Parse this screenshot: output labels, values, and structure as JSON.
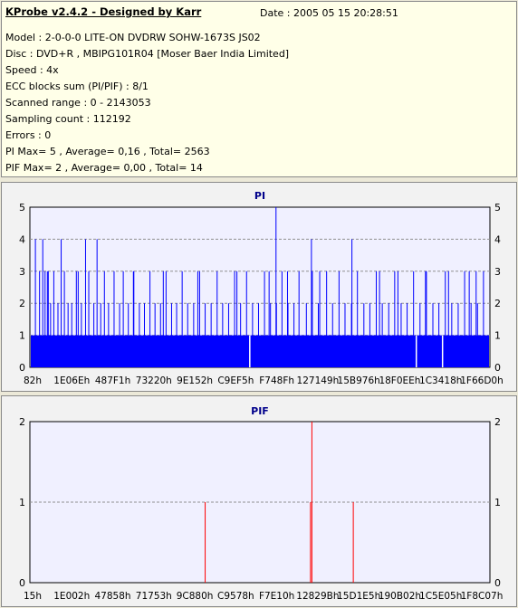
{
  "header": {
    "title": "KProbe v2.4.2 - Designed by Karr",
    "date": "Date : 2005 05 15 20:28:51",
    "lines": [
      "Model : 2-0-0-0 LITE-ON DVDRW SOHW-1673S JS02",
      "Disc : DVD+R , MBIPG101R04 [Moser Baer India Limited]",
      "Speed : 4x",
      "ECC blocks sum (PI/PIF) : 8/1",
      "Scanned range : 0 - 2143053",
      "Sampling count : 112192",
      "Errors : 0",
      "PI Max= 5 , Average= 0,16 , Total= 2563",
      "PIF Max= 2 , Average= 0,00 , Total= 14"
    ]
  },
  "colors": {
    "pi_bar": "#0000ff",
    "pif_bar": "#ff0000",
    "plot_bg": "#f0f0ff",
    "title": "#00008b"
  },
  "chart_data": [
    {
      "type": "bar",
      "title": "PI",
      "ylim": [
        0,
        5
      ],
      "yticks": [
        0,
        1,
        2,
        3,
        4,
        5
      ],
      "xlim": [
        0,
        2143053
      ],
      "xtick_labels": [
        "82h",
        "1E06Eh",
        "487F1h",
        "73220h",
        "9E152h",
        "C9EF5h",
        "F748Fh",
        "127149h",
        "15B976h",
        "18F0EEh",
        "1C3418h",
        "1F66D0h"
      ],
      "baseline_level": 1,
      "baseline_gaps": [
        0.478,
        0.84,
        0.897
      ],
      "spikes": [
        {
          "x": 0.012,
          "y": 4
        },
        {
          "x": 0.021,
          "y": 3
        },
        {
          "x": 0.028,
          "y": 4
        },
        {
          "x": 0.033,
          "y": 3
        },
        {
          "x": 0.038,
          "y": 3
        },
        {
          "x": 0.045,
          "y": 2
        },
        {
          "x": 0.052,
          "y": 3
        },
        {
          "x": 0.061,
          "y": 2
        },
        {
          "x": 0.068,
          "y": 4
        },
        {
          "x": 0.075,
          "y": 3
        },
        {
          "x": 0.083,
          "y": 2
        },
        {
          "x": 0.091,
          "y": 2
        },
        {
          "x": 0.101,
          "y": 3
        },
        {
          "x": 0.112,
          "y": 2
        },
        {
          "x": 0.121,
          "y": 4
        },
        {
          "x": 0.128,
          "y": 3
        },
        {
          "x": 0.139,
          "y": 2
        },
        {
          "x": 0.146,
          "y": 4
        },
        {
          "x": 0.154,
          "y": 2
        },
        {
          "x": 0.162,
          "y": 3
        },
        {
          "x": 0.171,
          "y": 2
        },
        {
          "x": 0.183,
          "y": 3
        },
        {
          "x": 0.195,
          "y": 2
        },
        {
          "x": 0.203,
          "y": 3
        },
        {
          "x": 0.214,
          "y": 2
        },
        {
          "x": 0.226,
          "y": 3
        },
        {
          "x": 0.238,
          "y": 2
        },
        {
          "x": 0.249,
          "y": 2
        },
        {
          "x": 0.261,
          "y": 3
        },
        {
          "x": 0.272,
          "y": 2
        },
        {
          "x": 0.284,
          "y": 2
        },
        {
          "x": 0.296,
          "y": 3
        },
        {
          "x": 0.308,
          "y": 2
        },
        {
          "x": 0.319,
          "y": 2
        },
        {
          "x": 0.331,
          "y": 3
        },
        {
          "x": 0.343,
          "y": 2
        },
        {
          "x": 0.356,
          "y": 2
        },
        {
          "x": 0.369,
          "y": 3
        },
        {
          "x": 0.381,
          "y": 2
        },
        {
          "x": 0.394,
          "y": 2
        },
        {
          "x": 0.407,
          "y": 3
        },
        {
          "x": 0.419,
          "y": 2
        },
        {
          "x": 0.432,
          "y": 2
        },
        {
          "x": 0.445,
          "y": 3
        },
        {
          "x": 0.458,
          "y": 2
        },
        {
          "x": 0.471,
          "y": 3
        },
        {
          "x": 0.484,
          "y": 2
        },
        {
          "x": 0.497,
          "y": 2
        },
        {
          "x": 0.51,
          "y": 3
        },
        {
          "x": 0.523,
          "y": 2
        },
        {
          "x": 0.536,
          "y": 2
        },
        {
          "x": 0.548,
          "y": 3
        },
        {
          "x": 0.561,
          "y": 2
        },
        {
          "x": 0.574,
          "y": 2
        },
        {
          "x": 0.585,
          "y": 3
        },
        {
          "x": 0.601,
          "y": 2
        },
        {
          "x": 0.614,
          "y": 3
        },
        {
          "x": 0.627,
          "y": 2
        },
        {
          "x": 0.645,
          "y": 3
        },
        {
          "x": 0.658,
          "y": 2
        },
        {
          "x": 0.672,
          "y": 3
        },
        {
          "x": 0.685,
          "y": 2
        },
        {
          "x": 0.699,
          "y": 2
        },
        {
          "x": 0.712,
          "y": 3
        },
        {
          "x": 0.726,
          "y": 2
        },
        {
          "x": 0.739,
          "y": 2
        },
        {
          "x": 0.753,
          "y": 3
        },
        {
          "x": 0.766,
          "y": 2
        },
        {
          "x": 0.78,
          "y": 2
        },
        {
          "x": 0.793,
          "y": 3
        },
        {
          "x": 0.807,
          "y": 2
        },
        {
          "x": 0.82,
          "y": 2
        },
        {
          "x": 0.834,
          "y": 3
        },
        {
          "x": 0.848,
          "y": 2
        },
        {
          "x": 0.862,
          "y": 3
        },
        {
          "x": 0.876,
          "y": 2
        },
        {
          "x": 0.889,
          "y": 2
        },
        {
          "x": 0.903,
          "y": 3
        },
        {
          "x": 0.917,
          "y": 2
        },
        {
          "x": 0.931,
          "y": 2
        },
        {
          "x": 0.945,
          "y": 3
        },
        {
          "x": 0.959,
          "y": 2
        },
        {
          "x": 0.973,
          "y": 2
        },
        {
          "x": 0.986,
          "y": 3
        },
        {
          "x": 0.535,
          "y": 5
        },
        {
          "x": 0.612,
          "y": 4
        },
        {
          "x": 0.7,
          "y": 4
        },
        {
          "x": 0.04,
          "y": 3
        },
        {
          "x": 0.105,
          "y": 3
        },
        {
          "x": 0.225,
          "y": 3
        },
        {
          "x": 0.29,
          "y": 3
        },
        {
          "x": 0.365,
          "y": 3
        },
        {
          "x": 0.45,
          "y": 3
        },
        {
          "x": 0.52,
          "y": 3
        },
        {
          "x": 0.56,
          "y": 3
        },
        {
          "x": 0.63,
          "y": 3
        },
        {
          "x": 0.76,
          "y": 3
        },
        {
          "x": 0.8,
          "y": 3
        },
        {
          "x": 0.86,
          "y": 3
        },
        {
          "x": 0.91,
          "y": 3
        },
        {
          "x": 0.955,
          "y": 3
        },
        {
          "x": 0.97,
          "y": 3
        }
      ]
    },
    {
      "type": "bar",
      "title": "PIF",
      "ylim": [
        0,
        2
      ],
      "yticks": [
        0,
        1,
        2
      ],
      "xlim": [
        0,
        2143053
      ],
      "xtick_labels": [
        "15h",
        "1E002h",
        "47858h",
        "71753h",
        "9C880h",
        "C9578h",
        "F7E10h",
        "12829Bh",
        "15D1E5h",
        "190B02h",
        "1C5E05h",
        "1F8C07h"
      ],
      "spikes": [
        {
          "x": 0.381,
          "y": 1
        },
        {
          "x": 0.61,
          "y": 1
        },
        {
          "x": 0.613,
          "y": 2
        },
        {
          "x": 0.703,
          "y": 1
        }
      ]
    }
  ]
}
